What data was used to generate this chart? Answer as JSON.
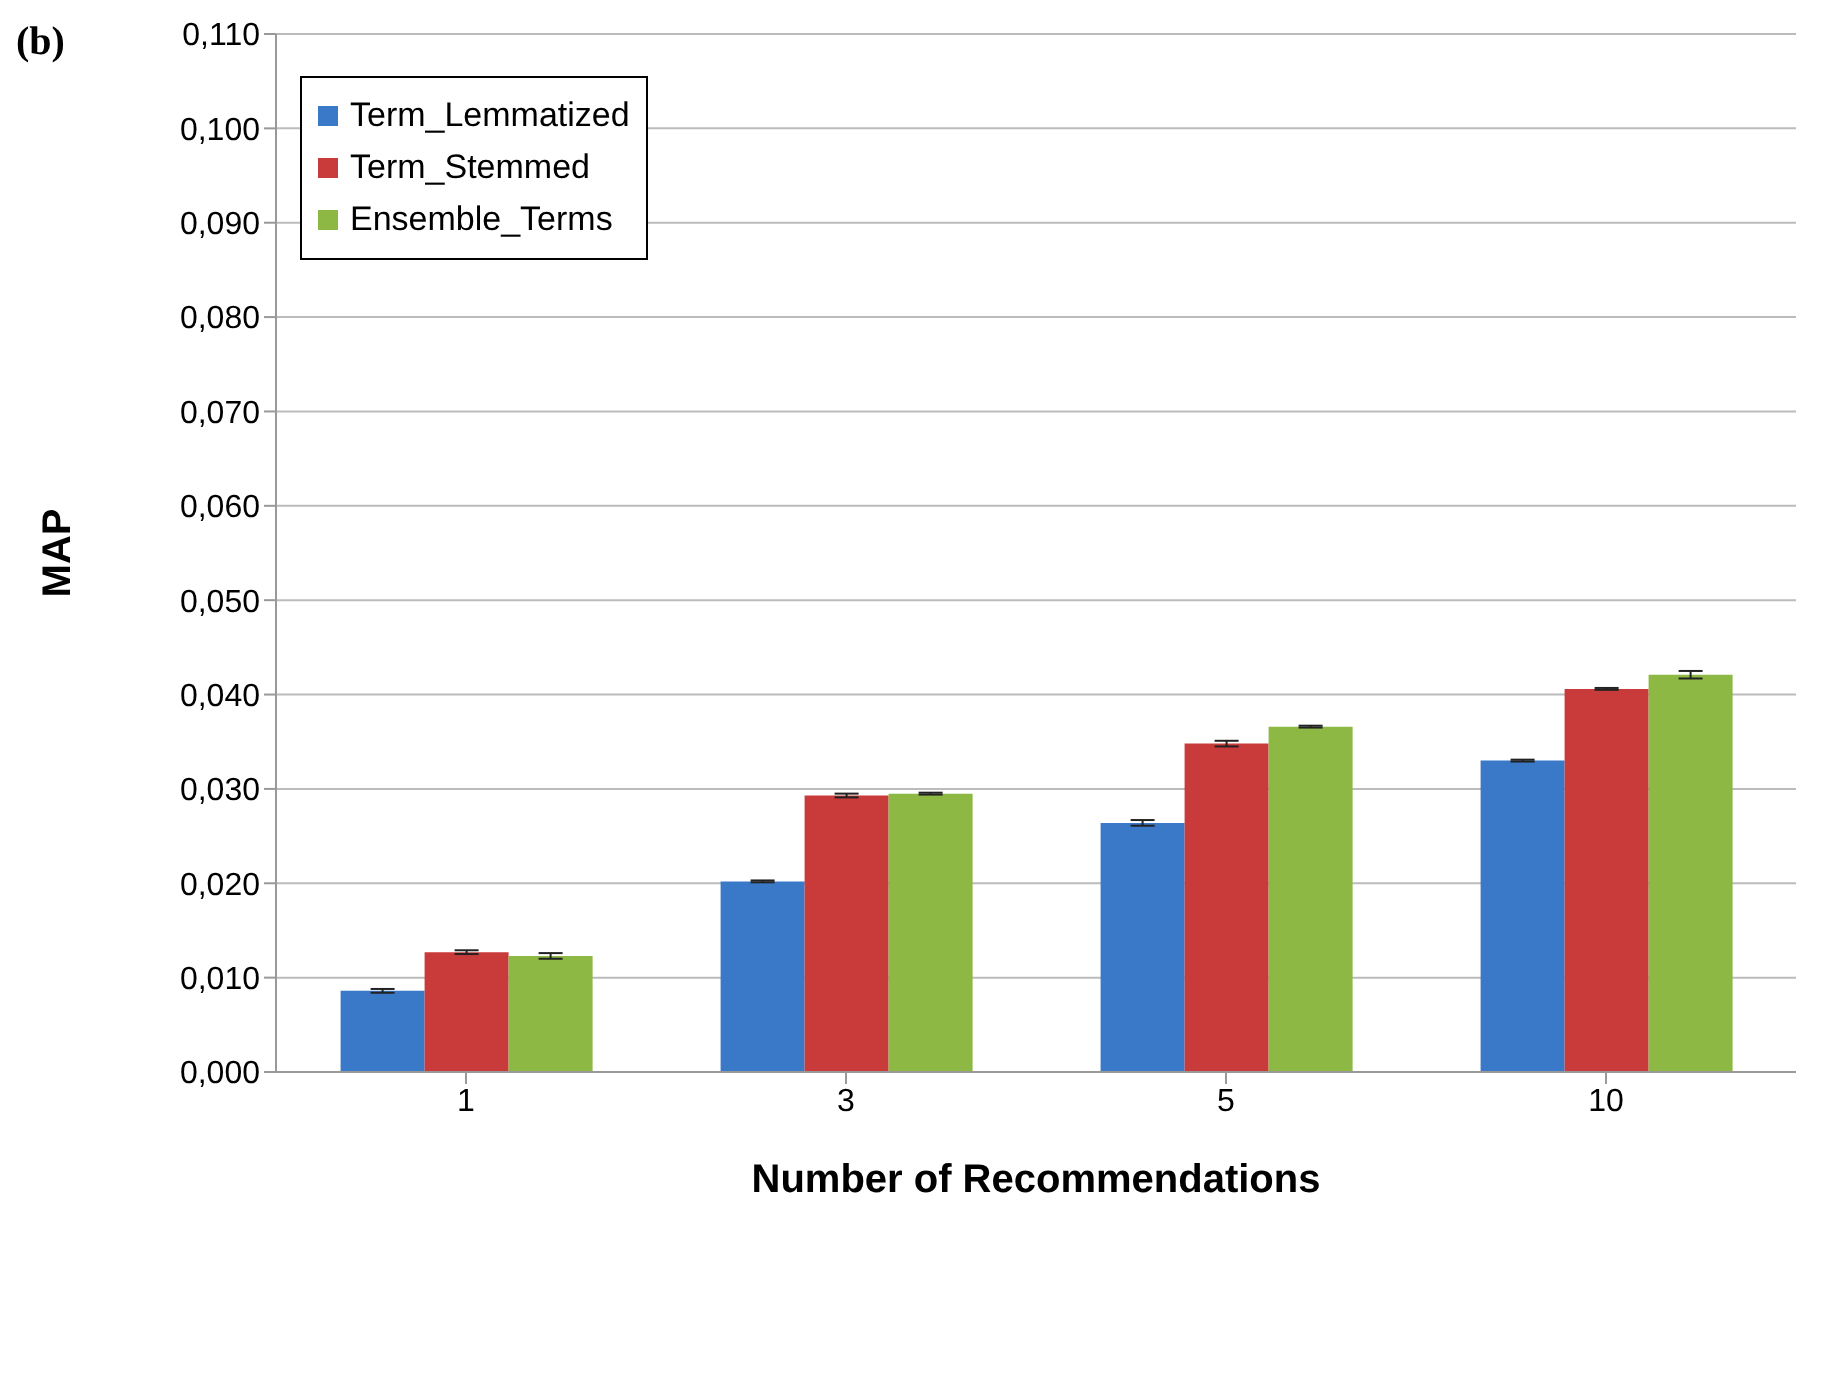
{
  "chart_data": {
    "type": "bar",
    "title": "(b)",
    "xlabel": "Number of Recommendations",
    "ylabel": "MAP",
    "categories": [
      "1",
      "3",
      "5",
      "10"
    ],
    "series": [
      {
        "name": "Term_Lemmatized",
        "color": "#3a78c8",
        "values": [
          0.0086,
          0.0202,
          0.0264,
          0.033
        ],
        "errors": [
          0.0002,
          0.0001,
          0.0003,
          0.0001
        ]
      },
      {
        "name": "Term_Stemmed",
        "color": "#c93a3a",
        "values": [
          0.0127,
          0.0293,
          0.0348,
          0.0406
        ],
        "errors": [
          0.0002,
          0.0002,
          0.0003,
          0.0001
        ]
      },
      {
        "name": "Ensemble_Terms",
        "color": "#8db843",
        "values": [
          0.0123,
          0.0295,
          0.0366,
          0.0421
        ],
        "errors": [
          0.0003,
          0.0001,
          0.0001,
          0.0004
        ]
      }
    ],
    "ylim": [
      0,
      0.11
    ],
    "yticks": [
      {
        "value": 0,
        "label": "0,000"
      },
      {
        "value": 0.01,
        "label": "0,010"
      },
      {
        "value": 0.02,
        "label": "0,020"
      },
      {
        "value": 0.03,
        "label": "0,030"
      },
      {
        "value": 0.04,
        "label": "0,040"
      },
      {
        "value": 0.05,
        "label": "0,050"
      },
      {
        "value": 0.06,
        "label": "0,060"
      },
      {
        "value": 0.07,
        "label": "0,070"
      },
      {
        "value": 0.08,
        "label": "0,080"
      },
      {
        "value": 0.09,
        "label": "0,090"
      },
      {
        "value": 0.1,
        "label": "0,100"
      },
      {
        "value": 0.11,
        "label": "0,110"
      }
    ],
    "grid": "y",
    "legend": "top left"
  }
}
